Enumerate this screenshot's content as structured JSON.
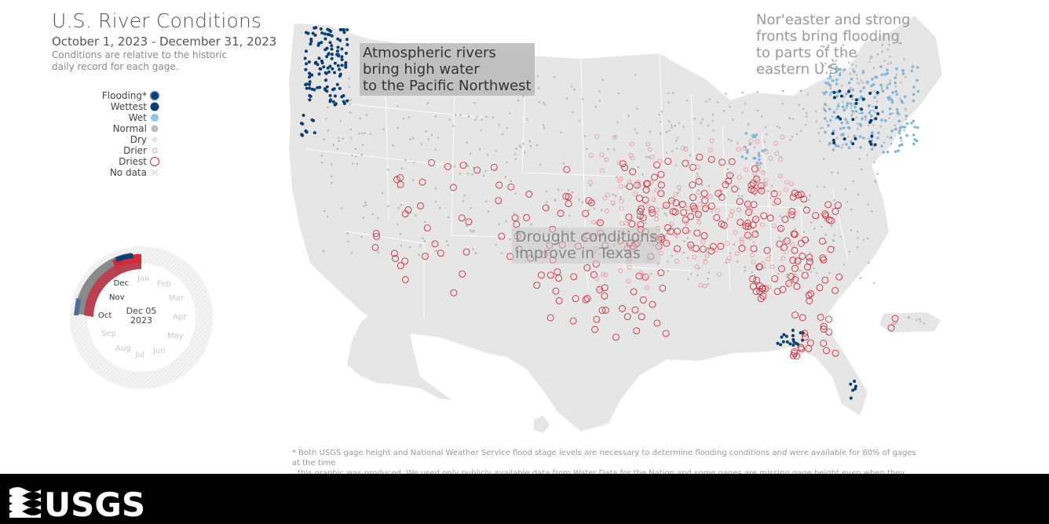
{
  "header": {
    "title": "U.S. River Conditions",
    "date_range": "October 1, 2023 - December 31, 2023",
    "note_line1": "Conditions are relative to the historic",
    "note_line2": "daily record for each gage."
  },
  "legend": {
    "items": [
      {
        "label": "Flooding*",
        "color": "#1a3a6e",
        "symbol": "ringed-dot"
      },
      {
        "label": "Wettest",
        "color": "#0b3f73",
        "symbol": "dot"
      },
      {
        "label": "Wet",
        "color": "#7fb6dc",
        "symbol": "dot"
      },
      {
        "label": "Normal",
        "color": "#b9b9b9",
        "symbol": "dot"
      },
      {
        "label": "Dry",
        "color": "#e8c4c4",
        "symbol": "small-circle"
      },
      {
        "label": "Drier",
        "color": "#e79aa2",
        "symbol": "circle"
      },
      {
        "label": "Driest",
        "color": "#d22b3b",
        "symbol": "large-circle"
      },
      {
        "label": "No data",
        "color": "#cccccc",
        "symbol": "x"
      }
    ]
  },
  "annotations": {
    "pnw": [
      "Atmospheric rivers",
      "bring high water",
      "to the Pacific Northwest"
    ],
    "texas": [
      "Drought conditions",
      "improve in Texas"
    ],
    "northeast": [
      "Nor'easter and strong",
      "fronts bring flooding",
      "to parts of the",
      "eastern U.S."
    ]
  },
  "clock": {
    "current_date_line1": "Dec 05",
    "current_date_line2": "2023",
    "months": [
      "Jan",
      "Feb",
      "Mar",
      "Apr",
      "May",
      "Jun",
      "Jul",
      "Aug",
      "Sep",
      "Oct",
      "Nov",
      "Dec"
    ],
    "active_months": [
      "Oct",
      "Nov",
      "Dec"
    ]
  },
  "footnote": {
    "line1": "* Both USGS gage height and National Weather Service flood stage levels are necessary to determine flooding conditions and were available for 80% of gages at the time",
    "line2": "this graphic was produced. We used only publicly available data from Water Data for the Nation and some gages are missing gage height even when they have flow."
  },
  "footer": {
    "logo_text": "USGS"
  },
  "colors": {
    "land": "#e6e6e6",
    "flooding": "#1a3a6e",
    "wettest": "#0b3f73",
    "wet": "#7fb6dc",
    "normal": "#b9b9b9",
    "drier": "#e79aa2",
    "driest": "#d22b3b",
    "footer": "#000000"
  }
}
